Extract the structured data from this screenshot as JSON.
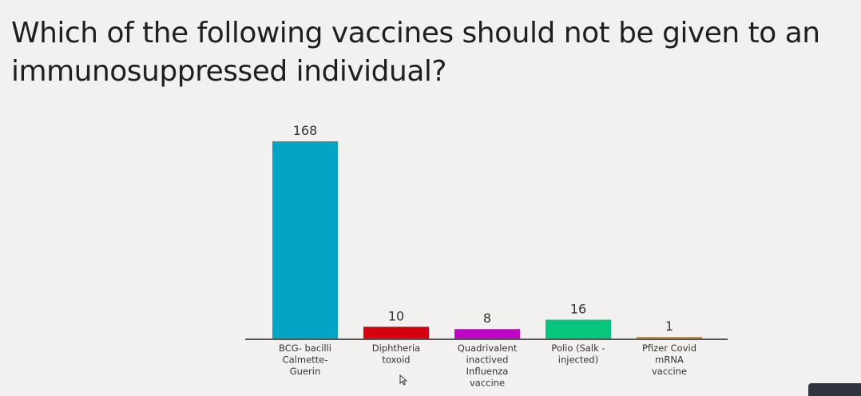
{
  "question": {
    "text": "Which of the following vaccines should not be given to an immunosuppressed individual?"
  },
  "chart_data": {
    "type": "bar",
    "title": "",
    "xlabel": "",
    "ylabel": "",
    "ylim": [
      0,
      168
    ],
    "grid": false,
    "legend": "none",
    "categories": [
      [
        "BCG- bacilli",
        "Calmette-",
        "Guerin"
      ],
      [
        "Diphtheria",
        "toxoid"
      ],
      [
        "Quadrivalent",
        "inactived",
        "Influenza",
        "vaccine"
      ],
      [
        "Polio (Salk -",
        "injected)"
      ],
      [
        "Pfizer Covid",
        "mRNA",
        "vaccine"
      ]
    ],
    "values": [
      168,
      10,
      8,
      16,
      1
    ],
    "colors": [
      "#04a5c4",
      "#d4000f",
      "#c005c6",
      "#05c57a",
      "#cc8b3c"
    ]
  },
  "icons": {
    "cursor": "mouse-pointer-icon"
  }
}
